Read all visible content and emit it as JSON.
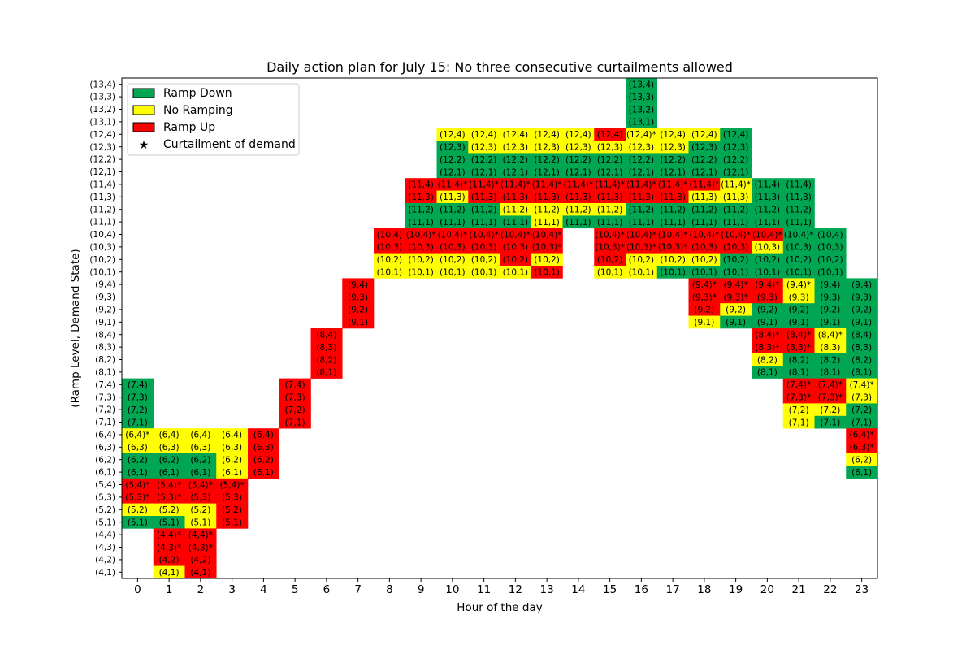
{
  "chart_data": {
    "type": "heatmap",
    "title": "Daily action plan for July 15: No three consecutive curtailments allowed",
    "xlabel": "Hour of the day",
    "ylabel": "(Ramp Level, Demand State)",
    "x_ticks": [
      0,
      1,
      2,
      3,
      4,
      5,
      6,
      7,
      8,
      9,
      10,
      11,
      12,
      13,
      14,
      15,
      16,
      17,
      18,
      19,
      20,
      21,
      22,
      23
    ],
    "y_ticks": [
      "(4,1)",
      "(4,2)",
      "(4,3)",
      "(4,4)",
      "(5,1)",
      "(5,2)",
      "(5,3)",
      "(5,4)",
      "(6,1)",
      "(6,2)",
      "(6,3)",
      "(6,4)",
      "(7,1)",
      "(7,2)",
      "(7,3)",
      "(7,4)",
      "(8,1)",
      "(8,2)",
      "(8,3)",
      "(8,4)",
      "(9,1)",
      "(9,2)",
      "(9,3)",
      "(9,4)",
      "(10,1)",
      "(10,2)",
      "(10,3)",
      "(10,4)",
      "(11,1)",
      "(11,2)",
      "(11,3)",
      "(11,4)",
      "(12,1)",
      "(12,2)",
      "(12,3)",
      "(12,4)",
      "(13,1)",
      "(13,2)",
      "(13,3)",
      "(13,4)"
    ],
    "colors": {
      "D": "#00a651",
      "N": "#ffff00",
      "U": "#ff0000"
    },
    "legend": {
      "position": "top-left",
      "entries": [
        {
          "label": "Ramp Down",
          "key": "D"
        },
        {
          "label": "No Ramping",
          "key": "N"
        },
        {
          "label": "Ramp Up",
          "key": "U"
        },
        {
          "label": "Curtailment of demand",
          "key": "star"
        }
      ]
    },
    "columns": {
      "0": "(7,4):D (7,3):D (7,2):D (7,1):D (6,4)*:N (6,3):N (6,2):D (6,1):D (5,4)*:U (5,3)*:U (5,2):N (5,1):D",
      "1": "(6,4):N (6,3):N (6,2):D (6,1):D (5,4)*:U (5,3)*:U (5,2):N (5,1):D (4,4)*:U (4,3)*:U (4,2):U (4,1):N",
      "2": "(6,4):N (6,3):N (6,2):D (6,1):D (5,4)*:U (5,3):U (5,2):N (5,1):N (4,4)*:U (4,3)*:U (4,2):U (4,1):U",
      "3": "(6,4):N (6,3):N (6,2):N (6,1):N (5,4)*:U (5,3):U (5,2):U (5,1):U",
      "4": "(6,4):U (6,3):U (6,2):U (6,1):U",
      "5": "(7,4):U (7,3):U (7,2):U (7,1):U",
      "6": "(8,4):U (8,3):U (8,2):U (8,1):U",
      "7": "(9,4):U (9,3):U (9,2):U (9,1):U",
      "8": "(10,4):U (10,3):U (10,2):N (10,1):N",
      "9": "(11,4):U (11,3):U (11,2):D (11,1):D (10,4)*:U (10,3):U (10,2):N (10,1):N",
      "10": "(12,4):N (12,3):D (12,2):D (12,1):D (11,4)*:U (11,3):N (11,2):D (11,1):D (10,4)*:U (10,3):U (10,2):N (10,1):N",
      "11": "(12,4):N (12,3):N (12,2):D (12,1):D (11,4)*:U (11,3):U (11,2):D (11,1):D (10,4)*:U (10,3):U (10,2):N (10,1):N",
      "12": "(12,4):N (12,3):N (12,2):D (12,1):D (11,4)*:U (11,3):U (11,2):N (11,1):D (10,4)*:U (10,3):U (10,2):U (10,1):N",
      "13": "(12,4):N (12,3):N (12,2):D (12,1):D (11,4)*:U (11,3):U (11,2):N (11,1):N (10,4)*:U (10,3)*:U (10,2):N (10,1):U",
      "14": "(12,4):N (12,3):N (12,2):D (12,1):D (11,4)*:U (11,3):U (11,2):N (11,1):D",
      "15": "(12,4):U (12,3):N (12,2):D (12,1):D (11,4)*:U (11,3):U (11,2):N (11,1):D (10,4)*:U (10,3)*:U (10,2):U (10,1):N",
      "16": "(13,4):D (13,3):D (13,2):D (13,1):D (12,4)*:N (12,3):N (12,2):D (12,1):D (11,4)*:U (11,3):U (11,2):D (11,1):D (10,4)*:U (10,3)*:U (10,2):N (10,1):N",
      "17": "(12,4):N (12,3):N (12,2):D (12,1):D (11,4)*:U (11,3):U (11,2):D (11,1):D (10,4)*:U (10,3)*:U (10,2):N (10,1):D",
      "18": "(12,4):N (12,3):D (12,2):D (12,1):D (11,4)*:U (11,3):N (11,2):D (11,1):D (10,4)*:U (10,3):U (10,2):N (10,1):D (9,4)*:U (9,3)*:U (9,2):U (9,1):N",
      "19": "(12,4):D (12,3):D (12,2):D (12,1):D (11,4)*:N (11,3):N (11,2):D (11,1):D (10,4)*:U (10,3):U (10,2):D (10,1):D (9,4)*:U (9,3)*:U (9,2):N (9,1):D",
      "20": "(11,4):D (11,3):D (11,2):D (11,1):D (10,4)*:U (10,3):N (10,2):D (10,1):D (9,4)*:U (9,3):U (9,2):D (9,1):D (8,4)*:U (8,3)*:U (8,2):N (8,1):D",
      "21": "(11,4):D (11,3):D (11,2):D (11,1):D (10,4)*:D (10,3):D (10,2):D (10,1):D (9,4)*:N (9,3):N (9,2):D (9,1):D (8,4)*:U (8,3)*:U (8,2):D (8,1):D (7,4)*:U (7,3)*:U (7,2):N (7,1):N",
      "22": "(10,4):D (10,3):D (10,2):D (10,1):D (9,4):D (9,3):D (9,2):D (9,1):D (8,4)*:N (8,3):N (8,2):D (8,1):D (7,4)*:U (7,3)*:U (7,2):N (7,1):D",
      "23": "(9,4):D (9,3):D (9,2):D (9,1):D (8,4):D (8,3):D (8,2):D (8,1):D (7,4)*:N (7,3):N (7,2):D (7,1):D (6,4)*:U (6,3)*:U (6,2):N (6,1):D"
    }
  }
}
